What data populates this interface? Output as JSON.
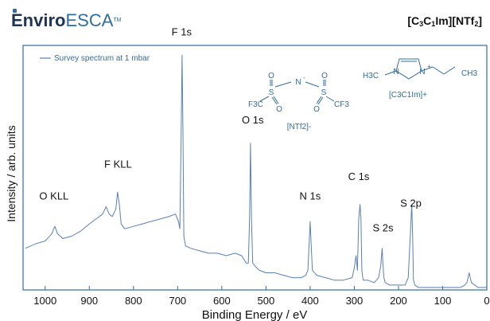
{
  "brand": {
    "part1": "Enviro",
    "part2": "ESCA",
    "tm": "TM"
  },
  "compound_title": {
    "a": "[C",
    "s1": "3",
    "b": "C",
    "s2": "1",
    "c": "Im][NTf",
    "s3": "2",
    "d": "]"
  },
  "structures": {
    "anion_caption": "[NTf2]-",
    "cation_caption": "[C3C1Im]+",
    "atoms": {
      "cf3": "F3C",
      "cf3b": "CF3",
      "s": "S",
      "o": "O",
      "n": "N",
      "ch3": "CH3",
      "h3c": "H3C"
    }
  },
  "chart_data": {
    "type": "line",
    "title": "",
    "xlabel": "Binding Energy / eV",
    "ylabel": "Intensity / arb. units",
    "xlim": [
      1050,
      0
    ],
    "ylim": [
      0,
      100
    ],
    "x_ticks": [
      1000,
      900,
      800,
      700,
      600,
      500,
      400,
      300,
      200,
      100,
      0
    ],
    "legend": {
      "position": "top-left",
      "label": "Survey spectrum at 1 mbar"
    },
    "series": [
      {
        "name": "Survey spectrum at 1 mbar",
        "color": "#5a7fb5",
        "x": [
          1045,
          1020,
          1000,
          985,
          978,
          972,
          960,
          940,
          920,
          900,
          885,
          870,
          862,
          855,
          848,
          840,
          836,
          832,
          828,
          820,
          800,
          780,
          760,
          740,
          720,
          705,
          698,
          695,
          692,
          690,
          688,
          686,
          682,
          670,
          650,
          630,
          610,
          590,
          570,
          555,
          545,
          540,
          537,
          535,
          533,
          530,
          526,
          515,
          500,
          480,
          460,
          440,
          420,
          410,
          405,
          402,
          400,
          398,
          395,
          385,
          365,
          345,
          325,
          305,
          300,
          296,
          293,
          290,
          287,
          285,
          283,
          280,
          270,
          255,
          245,
          240,
          237,
          235,
          233,
          230,
          220,
          200,
          185,
          178,
          173,
          170,
          168,
          166,
          163,
          155,
          130,
          100,
          80,
          60,
          50,
          45,
          40,
          35,
          20,
          10,
          0
        ],
        "y": [
          17,
          19,
          20,
          23,
          26,
          23,
          21,
          22,
          24,
          27,
          29,
          31,
          34,
          31,
          30,
          33,
          40,
          35,
          27,
          25,
          26,
          27,
          28,
          29,
          30,
          31,
          28,
          25,
          65,
          96,
          65,
          22,
          18,
          17,
          16,
          15,
          15,
          14,
          15,
          14,
          11,
          11,
          30,
          60,
          30,
          11,
          10,
          8,
          7,
          7,
          6,
          5,
          5,
          6,
          8,
          20,
          28,
          20,
          8,
          6,
          5,
          4,
          4,
          5,
          9,
          14,
          8,
          29,
          35,
          29,
          8,
          4,
          4,
          3,
          5,
          10,
          17,
          10,
          5,
          3,
          2,
          2,
          2,
          5,
          23,
          35,
          23,
          4,
          2,
          1,
          1,
          1,
          1,
          1,
          2,
          3,
          7,
          3,
          1,
          1,
          1
        ]
      }
    ],
    "annotations": [
      {
        "label": "O KLL",
        "x": 980,
        "y": 37
      },
      {
        "label": "F KLL",
        "x": 835,
        "y": 50
      },
      {
        "label": "F 1s",
        "x": 691,
        "y": 104
      },
      {
        "label": "O 1s",
        "x": 530,
        "y": 68
      },
      {
        "label": "N 1s",
        "x": 400,
        "y": 37
      },
      {
        "label": "C 1s",
        "x": 290,
        "y": 45
      },
      {
        "label": "S 2s",
        "x": 235,
        "y": 24
      },
      {
        "label": "S 2p",
        "x": 172,
        "y": 34
      }
    ]
  }
}
